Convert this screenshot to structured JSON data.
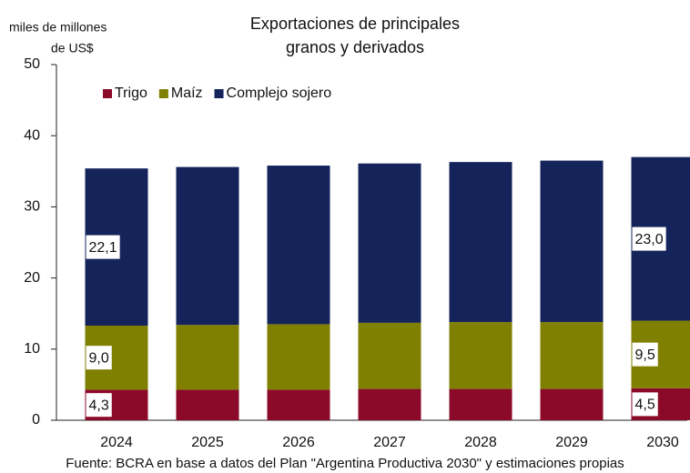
{
  "chart_data": {
    "type": "stacked_bar",
    "title": [
      "Exportaciones de principales",
      "granos y derivados"
    ],
    "y_label": [
      "miles de millones",
      "de US$"
    ],
    "categories": [
      "2024",
      "2025",
      "2026",
      "2027",
      "2028",
      "2029",
      "2030"
    ],
    "series": [
      {
        "name": "Trigo",
        "color": "#8b0a2a",
        "values": [
          4.3,
          4.3,
          4.3,
          4.4,
          4.4,
          4.4,
          4.5
        ],
        "value_labels": [
          "4,3",
          null,
          null,
          null,
          null,
          null,
          "4,5"
        ]
      },
      {
        "name": "Maíz",
        "color": "#7f7f00",
        "values": [
          9.0,
          9.1,
          9.2,
          9.3,
          9.4,
          9.4,
          9.5
        ],
        "value_labels": [
          "9,0",
          null,
          null,
          null,
          null,
          null,
          "9,5"
        ]
      },
      {
        "name": "Complejo sojero",
        "color": "#14245a",
        "values": [
          22.1,
          22.2,
          22.3,
          22.4,
          22.5,
          22.7,
          23.0
        ],
        "value_labels": [
          "22,1",
          null,
          null,
          null,
          null,
          null,
          "23,0"
        ]
      }
    ],
    "ylim": [
      0,
      50
    ],
    "yticks": [
      0,
      10,
      20,
      30,
      40,
      50
    ],
    "grid": false,
    "source": "Fuente: BCRA en base a datos del Plan \"Argentina Productiva 2030\" y estimaciones propias"
  }
}
